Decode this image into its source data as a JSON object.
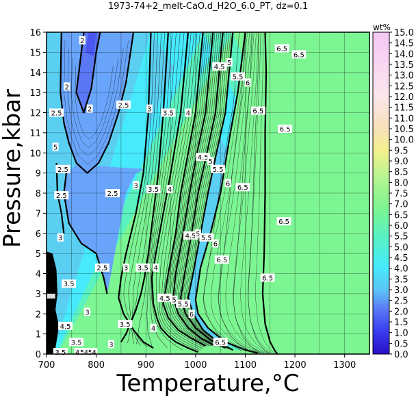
{
  "chart_data": {
    "type": "heatmap",
    "title": "1973-74+2_melt-CaO.d_H2O_6.0_PT, dz=0.1",
    "xlabel": "Temperature,°C",
    "ylabel": "Pressure,kbar",
    "xlim": [
      700,
      1350
    ],
    "ylim": [
      0,
      16
    ],
    "xticks": [
      "700",
      "800",
      "900",
      "1000",
      "1100",
      "1200",
      "1300"
    ],
    "yticks": [
      "0",
      "1",
      "2",
      "3",
      "4",
      "5",
      "6",
      "7",
      "8",
      "9",
      "10",
      "11",
      "12",
      "13",
      "14",
      "15",
      "16"
    ],
    "grid": true,
    "colorbar": {
      "label": "wt%",
      "range": [
        0.0,
        15.0
      ],
      "ticks": [
        "0.0",
        "0.5",
        "1.0",
        "1.5",
        "2.0",
        "2.5",
        "3.0",
        "3.5",
        "4.0",
        "4.5",
        "5.0",
        "5.5",
        "6.0",
        "6.5",
        "7.0",
        "7.5",
        "8.0",
        "8.5",
        "9.0",
        "9.5",
        "10.0",
        "10.5",
        "11.0",
        "11.5",
        "12.0",
        "12.5",
        "13.0",
        "13.5",
        "14.0",
        "14.5",
        "15.0"
      ]
    },
    "bands": [
      {
        "value": 1.5,
        "color": "#4b57f0"
      },
      {
        "value": 2.0,
        "color": "#5a78f5"
      },
      {
        "value": 2.5,
        "color": "#68a4fa"
      },
      {
        "value": 3.0,
        "color": "#5bcff2"
      },
      {
        "value": 4.0,
        "color": "#46eafc"
      },
      {
        "value": 5.5,
        "color": "#5af2c0"
      },
      {
        "value": 6.5,
        "color": "#7cf593"
      }
    ],
    "contours": [
      {
        "value": "2",
        "points": [
          [
            775,
            16
          ],
          [
            765,
            14
          ],
          [
            760,
            13
          ],
          [
            775,
            12
          ],
          [
            790,
            13.2
          ],
          [
            800,
            15
          ],
          [
            808,
            16
          ]
        ]
      },
      {
        "value": "2.5",
        "points": [
          [
            730,
            16
          ],
          [
            728,
            13
          ],
          [
            735,
            11.5
          ],
          [
            745,
            10.5
          ],
          [
            760,
            9.5
          ],
          [
            782,
            9
          ],
          [
            805,
            9.5
          ],
          [
            825,
            10.5
          ],
          [
            845,
            12
          ],
          [
            860,
            13.5
          ],
          [
            875,
            16
          ]
        ]
      },
      {
        "value": "2.5",
        "points": [
          [
            740,
            9
          ],
          [
            735,
            8
          ],
          [
            745,
            6.5
          ],
          [
            770,
            5.5
          ],
          [
            800,
            5
          ],
          [
            815,
            3.8
          ],
          [
            822,
            3
          ]
        ]
      },
      {
        "value": "3",
        "points": [
          [
            720,
            9.5
          ],
          [
            722,
            8
          ],
          [
            730,
            7
          ],
          [
            735,
            6
          ]
        ]
      },
      {
        "value": "3",
        "points": [
          [
            910,
            16
          ],
          [
            905,
            12
          ],
          [
            895,
            9
          ],
          [
            880,
            7
          ],
          [
            860,
            5
          ],
          [
            850,
            3.8
          ],
          [
            845,
            2.8
          ],
          [
            855,
            2
          ],
          [
            865,
            1.6
          ],
          [
            875,
            1.2
          ],
          [
            895,
            0.6
          ],
          [
            915,
            0.3
          ]
        ]
      },
      {
        "value": "3.5",
        "points": [
          [
            945,
            16
          ],
          [
            935,
            12
          ],
          [
            925,
            9
          ],
          [
            915,
            7
          ],
          [
            905,
            5
          ],
          [
            897,
            3.8
          ],
          [
            890,
            3
          ],
          [
            880,
            2.2
          ],
          [
            870,
            1.6
          ],
          [
            860,
            1
          ],
          [
            850,
            0.6
          ]
        ]
      },
      {
        "value": "4",
        "points": [
          [
            985,
            16
          ],
          [
            970,
            12
          ],
          [
            950,
            9
          ],
          [
            935,
            7
          ],
          [
            920,
            5
          ],
          [
            912,
            3.8
          ],
          [
            915,
            2.5
          ],
          [
            922,
            1.8
          ],
          [
            930,
            1.3
          ],
          [
            945,
            0.9
          ],
          [
            960,
            0.6
          ],
          [
            985,
            0.3
          ],
          [
            1005,
            0.1
          ]
        ]
      },
      {
        "value": "4.5",
        "points": [
          [
            1015,
            16
          ],
          [
            1000,
            12
          ],
          [
            985,
            10
          ],
          [
            970,
            8
          ],
          [
            960,
            6
          ],
          [
            945,
            4
          ],
          [
            935,
            2.5
          ],
          [
            945,
            1.8
          ],
          [
            965,
            1.2
          ],
          [
            990,
            0.8
          ],
          [
            1020,
            0.4
          ]
        ]
      },
      {
        "value": "5",
        "points": [
          [
            1035,
            16
          ],
          [
            1020,
            12
          ],
          [
            1003,
            10
          ],
          [
            988,
            8
          ],
          [
            975,
            6
          ],
          [
            960,
            4
          ],
          [
            955,
            2.8
          ],
          [
            965,
            2
          ],
          [
            985,
            1.3
          ],
          [
            1010,
            0.8
          ],
          [
            1040,
            0.4
          ]
        ]
      },
      {
        "value": "5.5",
        "points": [
          [
            1055,
            16
          ],
          [
            1040,
            12
          ],
          [
            1023,
            10
          ],
          [
            1005,
            8
          ],
          [
            992,
            6
          ],
          [
            978,
            4
          ],
          [
            970,
            2.8
          ],
          [
            980,
            2
          ],
          [
            1000,
            1.3
          ],
          [
            1030,
            0.7
          ],
          [
            1060,
            0.3
          ]
        ]
      },
      {
        "value": "6",
        "points": [
          [
            1075,
            16
          ],
          [
            1060,
            12
          ],
          [
            1042,
            10
          ],
          [
            1025,
            8
          ],
          [
            1010,
            6
          ],
          [
            995,
            4
          ],
          [
            985,
            2.8
          ],
          [
            995,
            2
          ],
          [
            1015,
            1.2
          ],
          [
            1045,
            0.6
          ],
          [
            1075,
            0.2
          ]
        ]
      },
      {
        "value": "6.5",
        "points": [
          [
            1100,
            16
          ],
          [
            1085,
            13
          ],
          [
            1070,
            11
          ],
          [
            1050,
            8
          ],
          [
            1030,
            6
          ],
          [
            1010,
            4.3
          ],
          [
            1000,
            2.7
          ],
          [
            1005,
            2
          ],
          [
            1025,
            1.3
          ],
          [
            1060,
            0.6
          ],
          [
            1100,
            0.2
          ],
          [
            1125,
            0.05
          ]
        ]
      },
      {
        "value": "6.5",
        "points": [
          [
            1140,
            16
          ],
          [
            1142,
            14
          ],
          [
            1140,
            11
          ],
          [
            1140,
            8
          ],
          [
            1138,
            5
          ],
          [
            1135,
            3
          ],
          [
            1140,
            1.5
          ],
          [
            1150,
            0.6
          ],
          [
            1160,
            0.15
          ],
          [
            1165,
            0
          ]
        ]
      }
    ],
    "labels": [
      {
        "text": "2",
        "x": 772,
        "y": 15.6
      },
      {
        "text": "2",
        "x": 741,
        "y": 13.3
      },
      {
        "text": "2",
        "x": 787,
        "y": 12.2
      },
      {
        "text": "2.5",
        "x": 720,
        "y": 12.0
      },
      {
        "text": "2.5",
        "x": 855,
        "y": 12.4
      },
      {
        "text": "3",
        "x": 907,
        "y": 12.2
      },
      {
        "text": "3.5",
        "x": 945,
        "y": 12.0
      },
      {
        "text": "4",
        "x": 985,
        "y": 12.0
      },
      {
        "text": "4.5",
        "x": 1048,
        "y": 14.3
      },
      {
        "text": "5",
        "x": 1068,
        "y": 14.5
      },
      {
        "text": "5.5",
        "x": 1085,
        "y": 13.8
      },
      {
        "text": "6",
        "x": 1105,
        "y": 13.5
      },
      {
        "text": "6.5",
        "x": 1126,
        "y": 12.1
      },
      {
        "text": "6.5",
        "x": 1174,
        "y": 15.2
      },
      {
        "text": "6.5",
        "x": 1208,
        "y": 14.9
      },
      {
        "text": "6.5",
        "x": 1180,
        "y": 11.2
      },
      {
        "text": "2.5",
        "x": 733,
        "y": 9.2
      },
      {
        "text": "2.5",
        "x": 833,
        "y": 8.0
      },
      {
        "text": "3",
        "x": 880,
        "y": 8.4
      },
      {
        "text": "3.5",
        "x": 915,
        "y": 8.2
      },
      {
        "text": "4",
        "x": 948,
        "y": 8.2
      },
      {
        "text": "4.5",
        "x": 1015,
        "y": 9.8
      },
      {
        "text": "5",
        "x": 1030,
        "y": 9.6
      },
      {
        "text": "5.5",
        "x": 1045,
        "y": 9.2
      },
      {
        "text": "6",
        "x": 1065,
        "y": 8.5
      },
      {
        "text": "6.5",
        "x": 1095,
        "y": 8.3
      },
      {
        "text": "6.5",
        "x": 1178,
        "y": 6.6
      },
      {
        "text": "2.5",
        "x": 730,
        "y": 7.9
      },
      {
        "text": "3",
        "x": 728,
        "y": 5.8
      },
      {
        "text": "3.5",
        "x": 745,
        "y": 3.5
      },
      {
        "text": "2.5",
        "x": 812,
        "y": 4.3
      },
      {
        "text": "3",
        "x": 860,
        "y": 4.3
      },
      {
        "text": "3.5",
        "x": 894,
        "y": 4.3
      },
      {
        "text": "4",
        "x": 920,
        "y": 4.3
      },
      {
        "text": "4.5",
        "x": 990,
        "y": 5.9
      },
      {
        "text": "5",
        "x": 1005,
        "y": 6.0
      },
      {
        "text": "5.5",
        "x": 1022,
        "y": 5.8
      },
      {
        "text": "6",
        "x": 1040,
        "y": 5.5
      },
      {
        "text": "6.5",
        "x": 1053,
        "y": 4.7
      },
      {
        "text": "6.5",
        "x": 1145,
        "y": 3.8
      },
      {
        "text": "3",
        "x": 782,
        "y": 2.1
      },
      {
        "text": "4.5",
        "x": 938,
        "y": 2.8
      },
      {
        "text": "5",
        "x": 957,
        "y": 2.7
      },
      {
        "text": "5.5",
        "x": 975,
        "y": 2.5
      },
      {
        "text": "6",
        "x": 992,
        "y": 2.0
      },
      {
        "text": "3.5",
        "x": 858,
        "y": 1.5
      },
      {
        "text": "4",
        "x": 915,
        "y": 1.3
      },
      {
        "text": "6.5",
        "x": 1050,
        "y": 0.6
      },
      {
        "text": "3.5",
        "x": 760,
        "y": 0.6
      },
      {
        "text": "3",
        "x": 830,
        "y": 0.5
      },
      {
        "text": "4.5",
        "x": 738,
        "y": 1.4
      },
      {
        "text": "3.5",
        "x": 728,
        "y": 0.1
      },
      {
        "text": "4",
        "x": 762,
        "y": 0.1
      },
      {
        "text": "5",
        "x": 772,
        "y": 0.1
      },
      {
        "text": "4",
        "x": 780,
        "y": 0.1
      },
      {
        "text": "5",
        "x": 788,
        "y": 0.1
      },
      {
        "text": "4",
        "x": 796,
        "y": 0.1
      },
      {
        "text": "5",
        "x": 718,
        "y": 10.3
      }
    ]
  }
}
